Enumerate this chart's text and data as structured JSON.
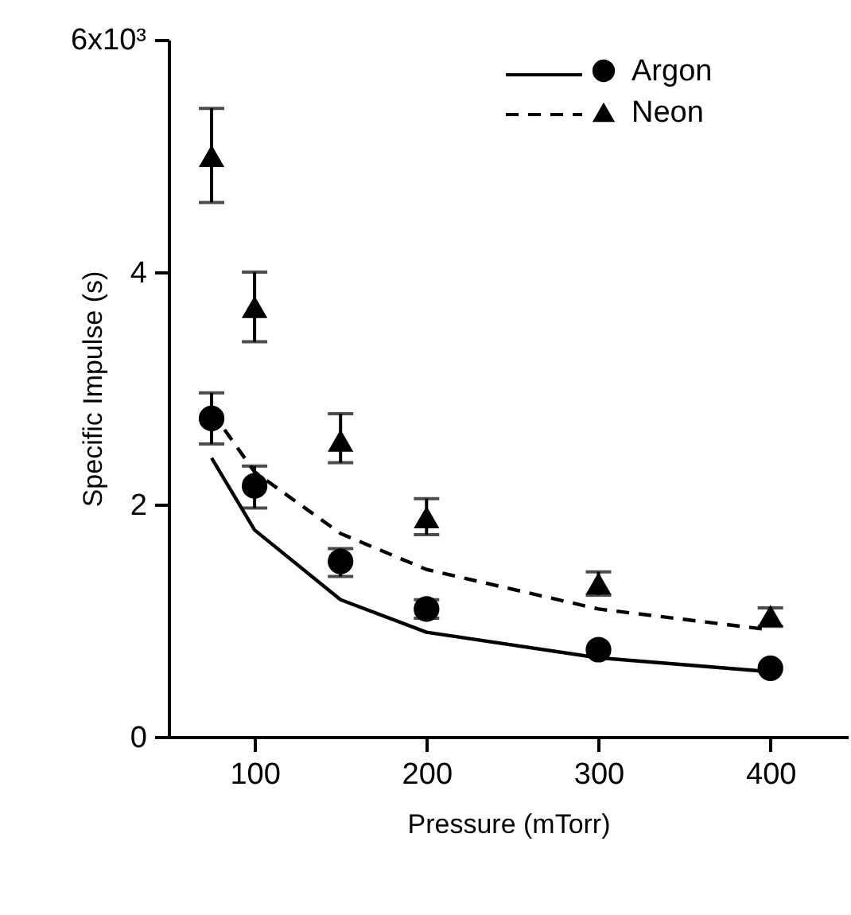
{
  "chart_data": {
    "type": "line",
    "xlabel": "Pressure (mTorr)",
    "ylabel": "Specific Impulse (s)",
    "xlim": [
      50,
      445
    ],
    "xticks": [
      100,
      200,
      300,
      400
    ],
    "ylim": [
      0,
      6
    ],
    "yticks": [
      0,
      2,
      4,
      {
        "value": 6,
        "label": null
      }
    ],
    "annotations": [
      "6x10³"
    ],
    "grid": false,
    "legend": "top right",
    "series": [
      {
        "color": "#000000",
        "line_style": "solid",
        "x": [
          75,
          100,
          150,
          200,
          300,
          400
        ],
        "values": [
          2.4,
          1.78,
          1.18,
          0.9,
          0.68,
          0.56
        ]
      },
      {
        "color": "#000000",
        "line_style": "dashed",
        "x": [
          75,
          100,
          150,
          200,
          300,
          400
        ],
        "values": [
          2.8,
          2.28,
          1.75,
          1.44,
          1.1,
          0.92
        ]
      },
      {
        "name": "Argon",
        "type": "scatter",
        "color": "#000000",
        "marker": "circle",
        "x": [
          75,
          100,
          150,
          200,
          300,
          400
        ],
        "values": [
          2.74,
          2.16,
          1.51,
          1.1,
          0.75,
          0.59
        ],
        "errors": [
          [
            2.52,
            2.96
          ],
          [
            1.97,
            2.33
          ],
          [
            1.38,
            1.62
          ],
          [
            1.02,
            1.18
          ],
          null,
          null
        ]
      },
      {
        "name": "Neon",
        "type": "scatter",
        "color": "#000000",
        "marker": "triangle",
        "x": [
          75,
          100,
          150,
          200,
          300,
          400
        ],
        "values": [
          5.0,
          3.7,
          2.55,
          1.89,
          1.32,
          1.04
        ],
        "errors": [
          [
            4.6,
            5.41
          ],
          [
            3.4,
            4.0
          ],
          [
            2.36,
            2.78
          ],
          [
            1.74,
            2.05
          ],
          [
            1.22,
            1.42
          ],
          [
            0.95,
            1.11
          ]
        ]
      }
    ]
  }
}
